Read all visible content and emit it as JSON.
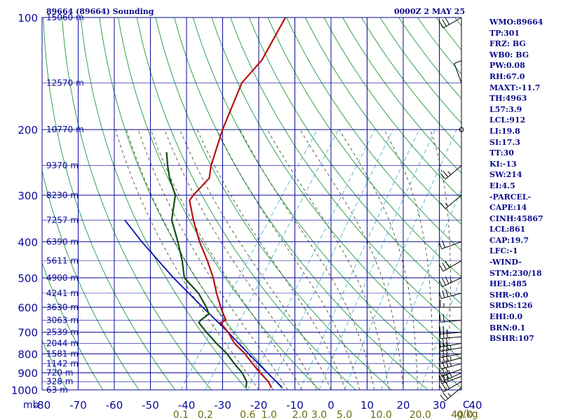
{
  "header": {
    "station": "89664 (89664) Sounding",
    "time": "0000Z  2 MAY 25"
  },
  "indices": [
    "WMO:89664",
    "TP:301",
    "FRZ: BG",
    "WB0: BG",
    "PW:0.08",
    "RH:67.0",
    "MAXT:-11.7",
    "TH:4963",
    "L57:3.9",
    "LCL:912",
    "LI:19.8",
    "SI:17.3",
    "TT:30",
    "KI:-13",
    "SW:214",
    "EI:4.5",
    "-PARCEL-",
    "CAPE:14",
    "CINH:45867",
    "LCL:861",
    "CAP:19.7",
    "LFC:-1",
    "-WIND-",
    "STM:230/18",
    "HEL:485",
    "SHR-:0.0",
    "SRDS:126",
    "EHI:0.0",
    "BRN:0.1",
    "BSHR:107"
  ],
  "colors": {
    "grid": "#0a0a9a",
    "isotherm": "#0a0a9a",
    "dry_adiabat": "#1e9a3c",
    "moist_adiabat": "#3a3a1a",
    "mixing_ratio": "#3aa8c8",
    "temperature": "#b81010",
    "dewpoint": "#105010",
    "parcel": "#1010b0",
    "mixing_label": "#6b6b10",
    "wind": "#000000"
  },
  "chart_data": {
    "type": "skew-t",
    "y_axis_unit_label": "mb",
    "x_axis_unit_label": "C",
    "y_scale": "log",
    "ylim": [
      1000,
      100
    ],
    "xlim": [
      -80,
      0
    ],
    "pressure_ticks": [
      100,
      200,
      300,
      400,
      500,
      600,
      700,
      800,
      900,
      1000
    ],
    "temperature_ticks": [
      -80,
      -70,
      -60,
      -50,
      -40,
      -30,
      -20,
      -10,
      0,
      10,
      20,
      30,
      40
    ],
    "height_labels": [
      {
        "p": 100,
        "text": "15060 m"
      },
      {
        "p": 150,
        "text": "12570 m"
      },
      {
        "p": 200,
        "text": "10770 m"
      },
      {
        "p": 250,
        "text": "9370 m"
      },
      {
        "p": 300,
        "text": "8230 m"
      },
      {
        "p": 350,
        "text": "7257 m"
      },
      {
        "p": 400,
        "text": "6390 m"
      },
      {
        "p": 450,
        "text": "5611 m"
      },
      {
        "p": 500,
        "text": "4900 m"
      },
      {
        "p": 550,
        "text": "4241 m"
      },
      {
        "p": 600,
        "text": "3630 m"
      },
      {
        "p": 650,
        "text": "3063 m"
      },
      {
        "p": 700,
        "text": "2539 m"
      },
      {
        "p": 750,
        "text": "2044 m"
      },
      {
        "p": 800,
        "text": "1581 m"
      },
      {
        "p": 850,
        "text": "1142 m"
      },
      {
        "p": 900,
        "text": "720 m"
      },
      {
        "p": 950,
        "text": "328 m"
      },
      {
        "p": 1000,
        "text": "63 m"
      }
    ],
    "mixing_ratio_labels": [
      "0.1",
      "0.2",
      "0.6",
      "1.0",
      "2.0",
      "3.0",
      "5.0",
      "10.0",
      "20.0",
      "40.0"
    ],
    "mixing_ratio_unit": "g/kg",
    "mixing_ratio_values": [
      0.1,
      0.2,
      0.6,
      1.0,
      2.0,
      3.0,
      5.0,
      10.0,
      20.0,
      40.0
    ],
    "temperature_profile": [
      {
        "p": 985,
        "t": -17
      },
      {
        "p": 950,
        "t": -19
      },
      {
        "p": 900,
        "t": -23
      },
      {
        "p": 850,
        "t": -27
      },
      {
        "p": 800,
        "t": -31
      },
      {
        "p": 750,
        "t": -36
      },
      {
        "p": 700,
        "t": -40
      },
      {
        "p": 660,
        "t": -44
      },
      {
        "p": 650,
        "t": -43
      },
      {
        "p": 625,
        "t": -45
      },
      {
        "p": 600,
        "t": -47
      },
      {
        "p": 550,
        "t": -51
      },
      {
        "p": 500,
        "t": -55
      },
      {
        "p": 450,
        "t": -60
      },
      {
        "p": 400,
        "t": -66
      },
      {
        "p": 350,
        "t": -72
      },
      {
        "p": 310,
        "t": -77
      },
      {
        "p": 300,
        "t": -77
      },
      {
        "p": 270,
        "t": -76
      },
      {
        "p": 250,
        "t": -78
      },
      {
        "p": 200,
        "t": -82
      },
      {
        "p": 150,
        "t": -86
      },
      {
        "p": 130,
        "t": -85
      },
      {
        "p": 100,
        "t": -87
      }
    ],
    "dewpoint_profile": [
      {
        "p": 985,
        "t": -24
      },
      {
        "p": 950,
        "t": -25
      },
      {
        "p": 900,
        "t": -28
      },
      {
        "p": 850,
        "t": -32
      },
      {
        "p": 800,
        "t": -36
      },
      {
        "p": 750,
        "t": -41
      },
      {
        "p": 700,
        "t": -46
      },
      {
        "p": 660,
        "t": -50
      },
      {
        "p": 650,
        "t": -50
      },
      {
        "p": 625,
        "t": -49
      },
      {
        "p": 600,
        "t": -51
      },
      {
        "p": 550,
        "t": -56
      },
      {
        "p": 500,
        "t": -63
      },
      {
        "p": 450,
        "t": -67
      },
      {
        "p": 400,
        "t": -72
      },
      {
        "p": 350,
        "t": -78
      },
      {
        "p": 300,
        "t": -82
      },
      {
        "p": 270,
        "t": -87
      },
      {
        "p": 250,
        "t": -90
      },
      {
        "p": 230,
        "t": -93
      }
    ],
    "parcel_profile": [
      {
        "p": 985,
        "t": -14
      },
      {
        "p": 900,
        "t": -21
      },
      {
        "p": 800,
        "t": -30
      },
      {
        "p": 700,
        "t": -40
      },
      {
        "p": 600,
        "t": -52
      },
      {
        "p": 500,
        "t": -66
      },
      {
        "p": 400,
        "t": -82
      },
      {
        "p": 350,
        "t": -91
      }
    ],
    "wind_barbs": [
      {
        "p": 985,
        "dir": 230,
        "spd": 25
      },
      {
        "p": 950,
        "dir": 240,
        "spd": 30
      },
      {
        "p": 920,
        "dir": 250,
        "spd": 25
      },
      {
        "p": 900,
        "dir": 245,
        "spd": 40
      },
      {
        "p": 880,
        "dir": 250,
        "spd": 30
      },
      {
        "p": 850,
        "dir": 255,
        "spd": 35
      },
      {
        "p": 820,
        "dir": 255,
        "spd": 35
      },
      {
        "p": 800,
        "dir": 260,
        "spd": 30
      },
      {
        "p": 770,
        "dir": 260,
        "spd": 35
      },
      {
        "p": 750,
        "dir": 260,
        "spd": 30
      },
      {
        "p": 720,
        "dir": 265,
        "spd": 30
      },
      {
        "p": 700,
        "dir": 265,
        "spd": 25
      },
      {
        "p": 650,
        "dir": 265,
        "spd": 20
      },
      {
        "p": 600,
        "dir": 270,
        "spd": 15
      },
      {
        "p": 550,
        "dir": 255,
        "spd": 30
      },
      {
        "p": 500,
        "dir": 245,
        "spd": 35
      },
      {
        "p": 450,
        "dir": 240,
        "spd": 30
      },
      {
        "p": 400,
        "dir": 250,
        "spd": 20
      },
      {
        "p": 300,
        "dir": 230,
        "spd": 15
      },
      {
        "p": 250,
        "dir": 230,
        "spd": 25
      },
      {
        "p": 200,
        "dir": 0,
        "spd": 0
      },
      {
        "p": 150,
        "dir": 340,
        "spd": 10
      },
      {
        "p": 100,
        "dir": 240,
        "spd": 30
      }
    ]
  }
}
